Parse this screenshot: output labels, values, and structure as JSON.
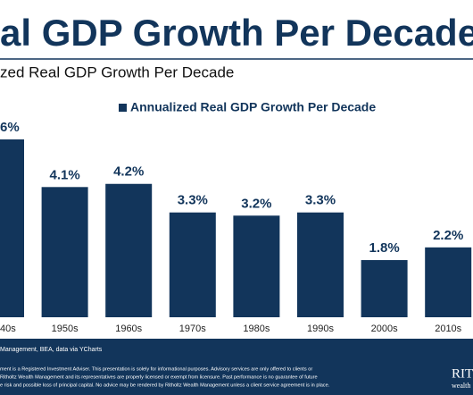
{
  "chart_data": {
    "type": "bar",
    "title": "al GDP Growth Per Decade",
    "subtitle": "zed Real GDP Growth Per Decade",
    "categories": [
      "40s",
      "1950s",
      "1960s",
      "1970s",
      "1980s",
      "1990s",
      "2000s",
      "2010s"
    ],
    "series": [
      {
        "name": "Annualized Real GDP Growth Per Decade",
        "color": "#12355b",
        "values": [
          5.6,
          4.1,
          4.2,
          3.3,
          3.2,
          3.3,
          1.8,
          2.2
        ],
        "value_labels": [
          "6%",
          "4.1%",
          "4.2%",
          "3.3%",
          "3.2%",
          "3.3%",
          "1.8%",
          "2.2%"
        ]
      }
    ],
    "source": "Management, BEA, data via YCharts",
    "disclaimer": [
      "ment is a Registered Investment Adviser. This presentation is solely for informational purposes. Advisory services are only offered to clients or",
      "Ritholtz Wealth Management and its representatives are properly licensed or exempt from licensure. Past performance is no guarantee of future",
      "e risk and possible loss of principal capital. No advice may be rendered by Ritholtz Wealth Management unless a client service agreement is in place."
    ],
    "logo": [
      "RITI",
      "wealth"
    ]
  }
}
